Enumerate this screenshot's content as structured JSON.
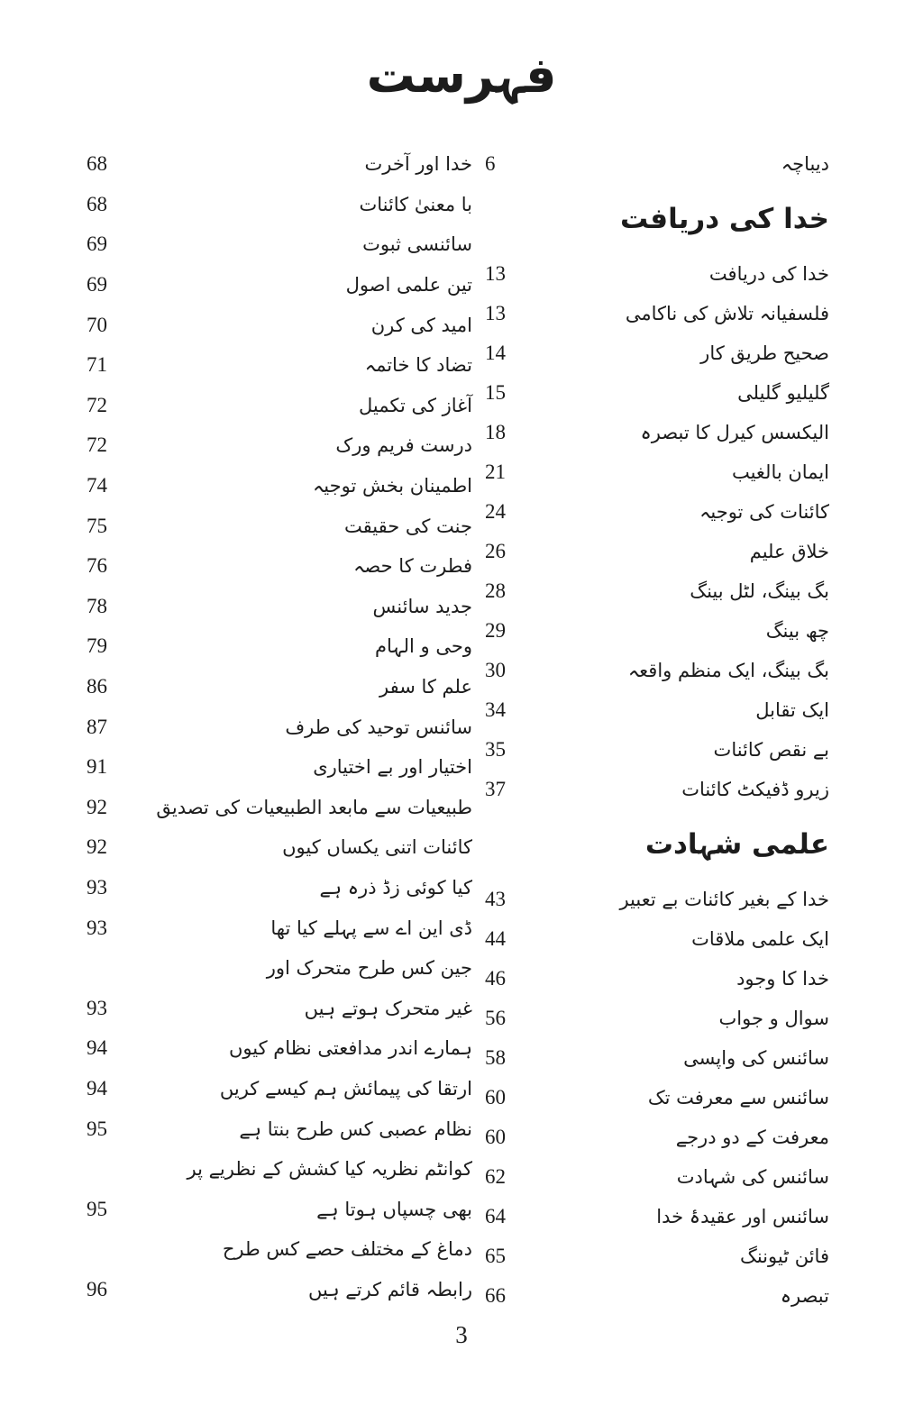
{
  "page": {
    "title": "فہرست",
    "page_number": "3"
  },
  "toc": {
    "column_right": [
      {
        "type": "entry",
        "label": "دیباچہ",
        "page": "6"
      },
      {
        "type": "heading",
        "label": "خدا کی دریافت",
        "page": ""
      },
      {
        "type": "entry",
        "label": "خدا کی دریافت",
        "page": "13"
      },
      {
        "type": "entry",
        "label": "فلسفیانہ تلاش کی ناکامی",
        "page": "13"
      },
      {
        "type": "entry",
        "label": "صحیح طریق کار",
        "page": "14"
      },
      {
        "type": "entry",
        "label": "گلیلیو گلیلی",
        "page": "15"
      },
      {
        "type": "entry",
        "label": "الیکسس کیرل کا تبصرہ",
        "page": "18"
      },
      {
        "type": "entry",
        "label": "ایمان بالغیب",
        "page": "21"
      },
      {
        "type": "entry",
        "label": "کائنات کی توجیہ",
        "page": "24"
      },
      {
        "type": "entry",
        "label": "خلاق علیم",
        "page": "26"
      },
      {
        "type": "entry",
        "label": "بگ بینگ، لٹل بینگ",
        "page": "28"
      },
      {
        "type": "entry",
        "label": "چھ بینگ",
        "page": "29"
      },
      {
        "type": "entry",
        "label": "بگ بینگ، ایک منظم واقعہ",
        "page": "30"
      },
      {
        "type": "entry",
        "label": "ایک تقابل",
        "page": "34"
      },
      {
        "type": "entry",
        "label": "بے نقص کائنات",
        "page": "35"
      },
      {
        "type": "entry",
        "label": "زیرو ڈفیکٹ کائنات",
        "page": "37"
      },
      {
        "type": "heading",
        "label": "علمی شہادت",
        "page": ""
      },
      {
        "type": "entry",
        "label": "خدا کے بغیر کائنات بے تعبیر",
        "page": "43"
      },
      {
        "type": "entry",
        "label": "ایک علمی ملاقات",
        "page": "44"
      },
      {
        "type": "entry",
        "label": "خدا کا وجود",
        "page": "46"
      },
      {
        "type": "entry",
        "label": "سوال و جواب",
        "page": "56"
      },
      {
        "type": "entry",
        "label": "سائنس کی واپسی",
        "page": "58"
      },
      {
        "type": "entry",
        "label": "سائنس سے معرفت تک",
        "page": "60"
      },
      {
        "type": "entry",
        "label": "معرفت کے دو درجے",
        "page": "60"
      },
      {
        "type": "entry",
        "label": "سائنس کی شہادت",
        "page": "62"
      },
      {
        "type": "entry",
        "label": "سائنس اور عقیدۂ خدا",
        "page": "64"
      },
      {
        "type": "entry",
        "label": "فائن ٹیوننگ",
        "page": "65"
      },
      {
        "type": "entry",
        "label": "تبصرہ",
        "page": "66"
      }
    ],
    "column_left": [
      {
        "type": "entry",
        "label": "خدا اور آخرت",
        "page": "68"
      },
      {
        "type": "entry",
        "label": "با معنیٰ کائنات",
        "page": "68"
      },
      {
        "type": "entry",
        "label": "سائنسی ثبوت",
        "page": "69"
      },
      {
        "type": "entry",
        "label": "تین علمی اصول",
        "page": "69"
      },
      {
        "type": "entry",
        "label": "امید کی کرن",
        "page": "70"
      },
      {
        "type": "entry",
        "label": "تضاد کا خاتمہ",
        "page": "71"
      },
      {
        "type": "entry",
        "label": "آغاز کی تکمیل",
        "page": "72"
      },
      {
        "type": "entry",
        "label": "درست فریم ورک",
        "page": "72"
      },
      {
        "type": "entry",
        "label": "اطمینان بخش توجیہ",
        "page": "74"
      },
      {
        "type": "entry",
        "label": "جنت کی حقیقت",
        "page": "75"
      },
      {
        "type": "entry",
        "label": "فطرت کا حصہ",
        "page": "76"
      },
      {
        "type": "entry",
        "label": "جدید سائنس",
        "page": "78"
      },
      {
        "type": "entry",
        "label": "وحی و الہام",
        "page": "79"
      },
      {
        "type": "entry",
        "label": "علم کا سفر",
        "page": "86"
      },
      {
        "type": "entry",
        "label": "سائنس توحید کی طرف",
        "page": "87"
      },
      {
        "type": "entry",
        "label": "اختیار اور بے اختیاری",
        "page": "91"
      },
      {
        "type": "entry",
        "label": "طبیعیات سے مابعد الطبیعیات کی تصدیق",
        "page": "92"
      },
      {
        "type": "entry",
        "label": "کائنات اتنی یکساں کیوں",
        "page": "92"
      },
      {
        "type": "entry",
        "label": "کیا کوئی زڈ ذرہ ہے",
        "page": "93"
      },
      {
        "type": "entry",
        "label": "ڈی این اے سے پہلے کیا تھا",
        "page": "93"
      },
      {
        "type": "entry",
        "label": "جین کس طرح متحرک اور",
        "page": ""
      },
      {
        "type": "entry",
        "label": "غیر متحرک ہوتے ہیں",
        "page": "93"
      },
      {
        "type": "entry",
        "label": "ہمارے اندر مدافعتی نظام کیوں",
        "page": "94"
      },
      {
        "type": "entry",
        "label": "ارتقا کی پیمائش ہم کیسے کریں",
        "page": "94"
      },
      {
        "type": "entry",
        "label": "نظام عصبی کس طرح بنتا ہے",
        "page": "95"
      },
      {
        "type": "entry",
        "label": "کوانٹم نظریہ کیا کشش کے نظریے پر",
        "page": ""
      },
      {
        "type": "entry",
        "label": "بھی چسپاں ہوتا ہے",
        "page": "95"
      },
      {
        "type": "entry",
        "label": "دماغ کے مختلف حصے کس طرح",
        "page": ""
      },
      {
        "type": "entry",
        "label": "رابطہ قائم کرتے ہیں",
        "page": "96"
      }
    ]
  }
}
